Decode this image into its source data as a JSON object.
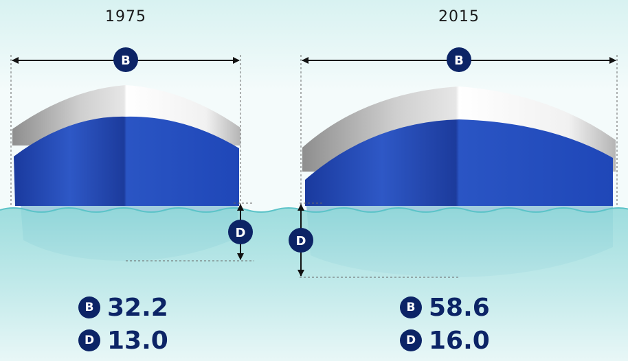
{
  "ships": [
    {
      "year": "1975",
      "beam_label": "B",
      "draft_label": "D",
      "beam": "32.2",
      "draft": "13.0"
    },
    {
      "year": "2015",
      "beam_label": "B",
      "draft_label": "D",
      "beam": "58.6",
      "draft": "16.0"
    }
  ],
  "colors": {
    "navy": "#0c2466",
    "hull_dark": "#16349a",
    "hull_light": "#2f58c4",
    "deck_white": "#f2f2f2",
    "deck_grey": "#9a9a9a",
    "water": "#7fd3d5",
    "sky": "#eef9f9"
  }
}
